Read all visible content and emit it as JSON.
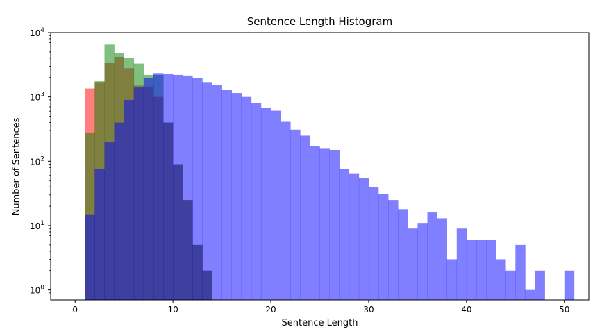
{
  "chart_data": {
    "type": "histogram",
    "title": "Sentence Length Histogram",
    "xlabel": "Sentence Length",
    "ylabel": "Number of Sentences",
    "yscale": "log",
    "xlim": [
      -2.5,
      52.5
    ],
    "ylim": [
      0.7,
      10000
    ],
    "xticks": [
      0,
      10,
      20,
      30,
      40,
      50
    ],
    "yticks": [
      {
        "value": 1,
        "base": "10",
        "exp": "0"
      },
      {
        "value": 10,
        "base": "10",
        "exp": "1"
      },
      {
        "value": 100,
        "base": "10",
        "exp": "2"
      },
      {
        "value": 1000,
        "base": "10",
        "exp": "3"
      },
      {
        "value": 10000,
        "base": "10",
        "exp": "4"
      }
    ],
    "grid": false,
    "bin_width": 1,
    "series": [
      {
        "color": "#ff0000",
        "alpha": 0.5,
        "start": 1,
        "values": [
          1350,
          1700,
          3350,
          4200,
          2800,
          1500,
          1450,
          1000,
          400,
          90,
          25,
          5,
          2
        ]
      },
      {
        "color": "#008000",
        "alpha": 0.5,
        "start": 1,
        "values": [
          280,
          1750,
          6500,
          4800,
          4000,
          3300,
          2200,
          2200,
          400,
          90,
          25,
          5,
          2
        ]
      },
      {
        "color": "#0000ff",
        "alpha": 0.5,
        "start": 1,
        "values": [
          15,
          75,
          200,
          400,
          900,
          1400,
          1950,
          2350,
          2250,
          2200,
          2150,
          1950,
          1700,
          1550,
          1300,
          1150,
          1000,
          800,
          680,
          610,
          410,
          310,
          250,
          170,
          160,
          150,
          75,
          65,
          55,
          40,
          31,
          25,
          18,
          9,
          11,
          16,
          13,
          3,
          9,
          6,
          6,
          6,
          3,
          2,
          5,
          1,
          2,
          0,
          0,
          2,
          0
        ]
      }
    ]
  }
}
